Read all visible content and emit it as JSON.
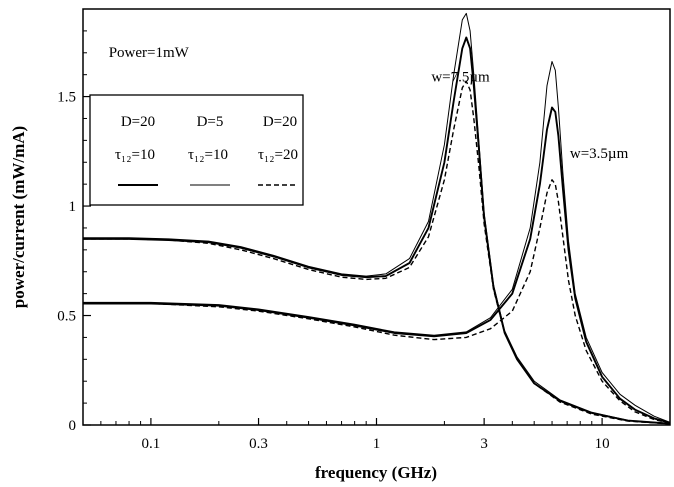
{
  "chart_data": {
    "type": "line",
    "title": "",
    "xlabel": "frequency (GHz)",
    "ylabel": "power/current (mW/mA)",
    "xscale": "log",
    "xlim": [
      0.05,
      20
    ],
    "ylim": [
      0,
      1.9
    ],
    "grid": false,
    "x_ticks": [
      {
        "value": 0.1,
        "label": "0.1"
      },
      {
        "value": 0.3,
        "label": "0.3"
      },
      {
        "value": 1,
        "label": "1"
      },
      {
        "value": 3,
        "label": "3"
      },
      {
        "value": 10,
        "label": "10"
      }
    ],
    "y_ticks": [
      {
        "value": 0,
        "label": "0"
      },
      {
        "value": 0.5,
        "label": "0.5"
      },
      {
        "value": 1,
        "label": "1"
      },
      {
        "value": 1.5,
        "label": "1.5"
      }
    ],
    "annotations": [
      {
        "text": "Power=1mW",
        "x": 0.065,
        "y": 1.68
      },
      {
        "text": "w=7.5µm",
        "x": 1.75,
        "y": 1.57
      },
      {
        "text": "w=3.5µm",
        "x": 7.2,
        "y": 1.22
      }
    ],
    "legend": {
      "placement": "upper-left",
      "columns": [
        {
          "line1": "D=20",
          "line2": "τ₁₂=10",
          "style": "solid"
        },
        {
          "line1": "D=5",
          "line2": "τ₁₂=10",
          "style": "thin-solid"
        },
        {
          "line1": "D=20",
          "line2": "τ₁₂=20",
          "style": "dashed"
        }
      ]
    },
    "series": [
      {
        "group": "w=7.5µm",
        "style": "solid",
        "x": [
          0.05,
          0.08,
          0.12,
          0.18,
          0.25,
          0.35,
          0.5,
          0.7,
          0.9,
          1.1,
          1.4,
          1.7,
          2.0,
          2.2,
          2.4,
          2.5,
          2.6,
          2.7,
          2.85,
          3.0,
          3.3,
          3.7,
          4.2,
          5.0,
          6.5,
          9,
          13,
          20
        ],
        "y": [
          0.85,
          0.85,
          0.845,
          0.835,
          0.81,
          0.77,
          0.72,
          0.685,
          0.675,
          0.68,
          0.74,
          0.9,
          1.2,
          1.48,
          1.72,
          1.77,
          1.72,
          1.55,
          1.25,
          0.95,
          0.63,
          0.42,
          0.3,
          0.19,
          0.11,
          0.055,
          0.02,
          0.006
        ]
      },
      {
        "group": "w=7.5µm",
        "style": "thin-solid",
        "x": [
          0.05,
          0.08,
          0.12,
          0.18,
          0.25,
          0.35,
          0.5,
          0.7,
          0.9,
          1.1,
          1.4,
          1.7,
          2.0,
          2.2,
          2.4,
          2.5,
          2.6,
          2.7,
          2.85,
          3.0,
          3.3,
          3.7,
          4.2,
          5.0,
          6.5,
          9,
          13,
          20
        ],
        "y": [
          0.855,
          0.855,
          0.85,
          0.84,
          0.815,
          0.775,
          0.725,
          0.69,
          0.68,
          0.69,
          0.76,
          0.93,
          1.28,
          1.6,
          1.85,
          1.88,
          1.8,
          1.6,
          1.28,
          0.97,
          0.64,
          0.43,
          0.31,
          0.2,
          0.115,
          0.058,
          0.021,
          0.007
        ]
      },
      {
        "group": "w=7.5µm",
        "style": "dashed",
        "x": [
          0.05,
          0.08,
          0.12,
          0.18,
          0.25,
          0.35,
          0.5,
          0.7,
          0.9,
          1.1,
          1.4,
          1.7,
          2.0,
          2.2,
          2.4,
          2.5,
          2.6,
          2.7,
          2.85,
          3.0,
          3.3,
          3.7,
          4.2,
          5.0,
          6.5,
          9,
          13,
          20
        ],
        "y": [
          0.85,
          0.85,
          0.845,
          0.83,
          0.8,
          0.76,
          0.71,
          0.675,
          0.665,
          0.67,
          0.72,
          0.86,
          1.12,
          1.35,
          1.54,
          1.57,
          1.53,
          1.4,
          1.17,
          0.92,
          0.62,
          0.42,
          0.3,
          0.19,
          0.105,
          0.05,
          0.018,
          0.005
        ]
      },
      {
        "group": "w=3.5µm",
        "style": "solid",
        "x": [
          0.05,
          0.1,
          0.2,
          0.3,
          0.5,
          0.8,
          1.2,
          1.8,
          2.5,
          3.2,
          4.0,
          4.8,
          5.3,
          5.7,
          6.0,
          6.2,
          6.4,
          6.7,
          7.1,
          7.6,
          8.5,
          10,
          12,
          14,
          17,
          20
        ],
        "y": [
          0.555,
          0.555,
          0.545,
          0.525,
          0.49,
          0.455,
          0.42,
          0.405,
          0.42,
          0.48,
          0.6,
          0.85,
          1.1,
          1.35,
          1.45,
          1.43,
          1.32,
          1.08,
          0.8,
          0.58,
          0.38,
          0.22,
          0.12,
          0.07,
          0.03,
          0.01
        ]
      },
      {
        "group": "w=3.5µm",
        "style": "thin-solid",
        "x": [
          0.05,
          0.1,
          0.2,
          0.3,
          0.5,
          0.8,
          1.2,
          1.8,
          2.5,
          3.2,
          4.0,
          4.8,
          5.3,
          5.7,
          6.0,
          6.2,
          6.4,
          6.7,
          7.1,
          7.6,
          8.5,
          10,
          12,
          14,
          17,
          20
        ],
        "y": [
          0.56,
          0.56,
          0.55,
          0.53,
          0.495,
          0.46,
          0.425,
          0.41,
          0.425,
          0.49,
          0.62,
          0.9,
          1.2,
          1.55,
          1.66,
          1.62,
          1.45,
          1.15,
          0.84,
          0.6,
          0.4,
          0.24,
          0.14,
          0.09,
          0.04,
          0.012
        ]
      },
      {
        "group": "w=3.5µm",
        "style": "dashed",
        "x": [
          0.05,
          0.1,
          0.2,
          0.3,
          0.5,
          0.8,
          1.2,
          1.8,
          2.5,
          3.2,
          4.0,
          4.8,
          5.3,
          5.7,
          6.0,
          6.2,
          6.4,
          6.7,
          7.1,
          7.6,
          8.5,
          10,
          12,
          14,
          17,
          20
        ],
        "y": [
          0.555,
          0.555,
          0.54,
          0.52,
          0.485,
          0.448,
          0.41,
          0.39,
          0.4,
          0.44,
          0.52,
          0.7,
          0.9,
          1.06,
          1.12,
          1.1,
          1.02,
          0.86,
          0.66,
          0.5,
          0.34,
          0.2,
          0.11,
          0.06,
          0.025,
          0.008
        ]
      }
    ]
  }
}
